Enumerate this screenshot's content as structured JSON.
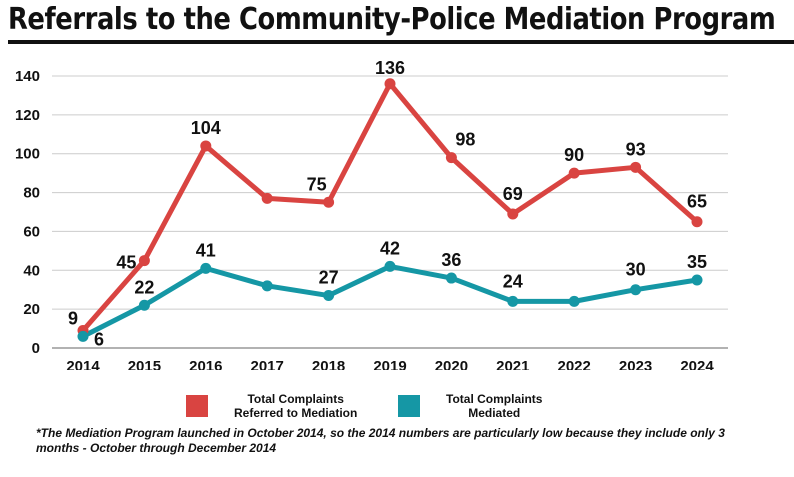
{
  "title": "Referrals to the Community-Police Mediation Program",
  "colors": {
    "referred": "#d94441",
    "mediated": "#1597a5",
    "grid": "#cccccc"
  },
  "footnote": "*The Mediation Program launched in October 2014, so the 2014 numbers are particularly low because they include only 3 months - October through December 2014",
  "chart_data": {
    "type": "line",
    "title": "Referrals to the Community-Police Mediation Program",
    "xlabel": "",
    "ylabel": "",
    "ylim": [
      0,
      140
    ],
    "yticks": [
      0,
      20,
      40,
      60,
      80,
      100,
      120,
      140
    ],
    "grid": true,
    "legend_position": "bottom",
    "categories": [
      "2014",
      "2015",
      "2016",
      "2017",
      "2018",
      "2019",
      "2020",
      "2021",
      "2022",
      "2023",
      "2024"
    ],
    "series": [
      {
        "name": "Total Complaints\nReferred to Mediation",
        "values": [
          9,
          45,
          104,
          77,
          75,
          136,
          98,
          69,
          90,
          93,
          65
        ],
        "labels": [
          "9",
          "45",
          "104",
          "",
          "75",
          "136",
          "98",
          "69",
          "90",
          "93",
          "65"
        ]
      },
      {
        "name": "Total Complaints\nMediated",
        "values": [
          6,
          22,
          41,
          32,
          27,
          42,
          36,
          24,
          24,
          30,
          35
        ],
        "labels": [
          "6",
          "22",
          "41",
          "",
          "27",
          "42",
          "36",
          "24",
          "",
          "30",
          "35"
        ]
      }
    ]
  }
}
